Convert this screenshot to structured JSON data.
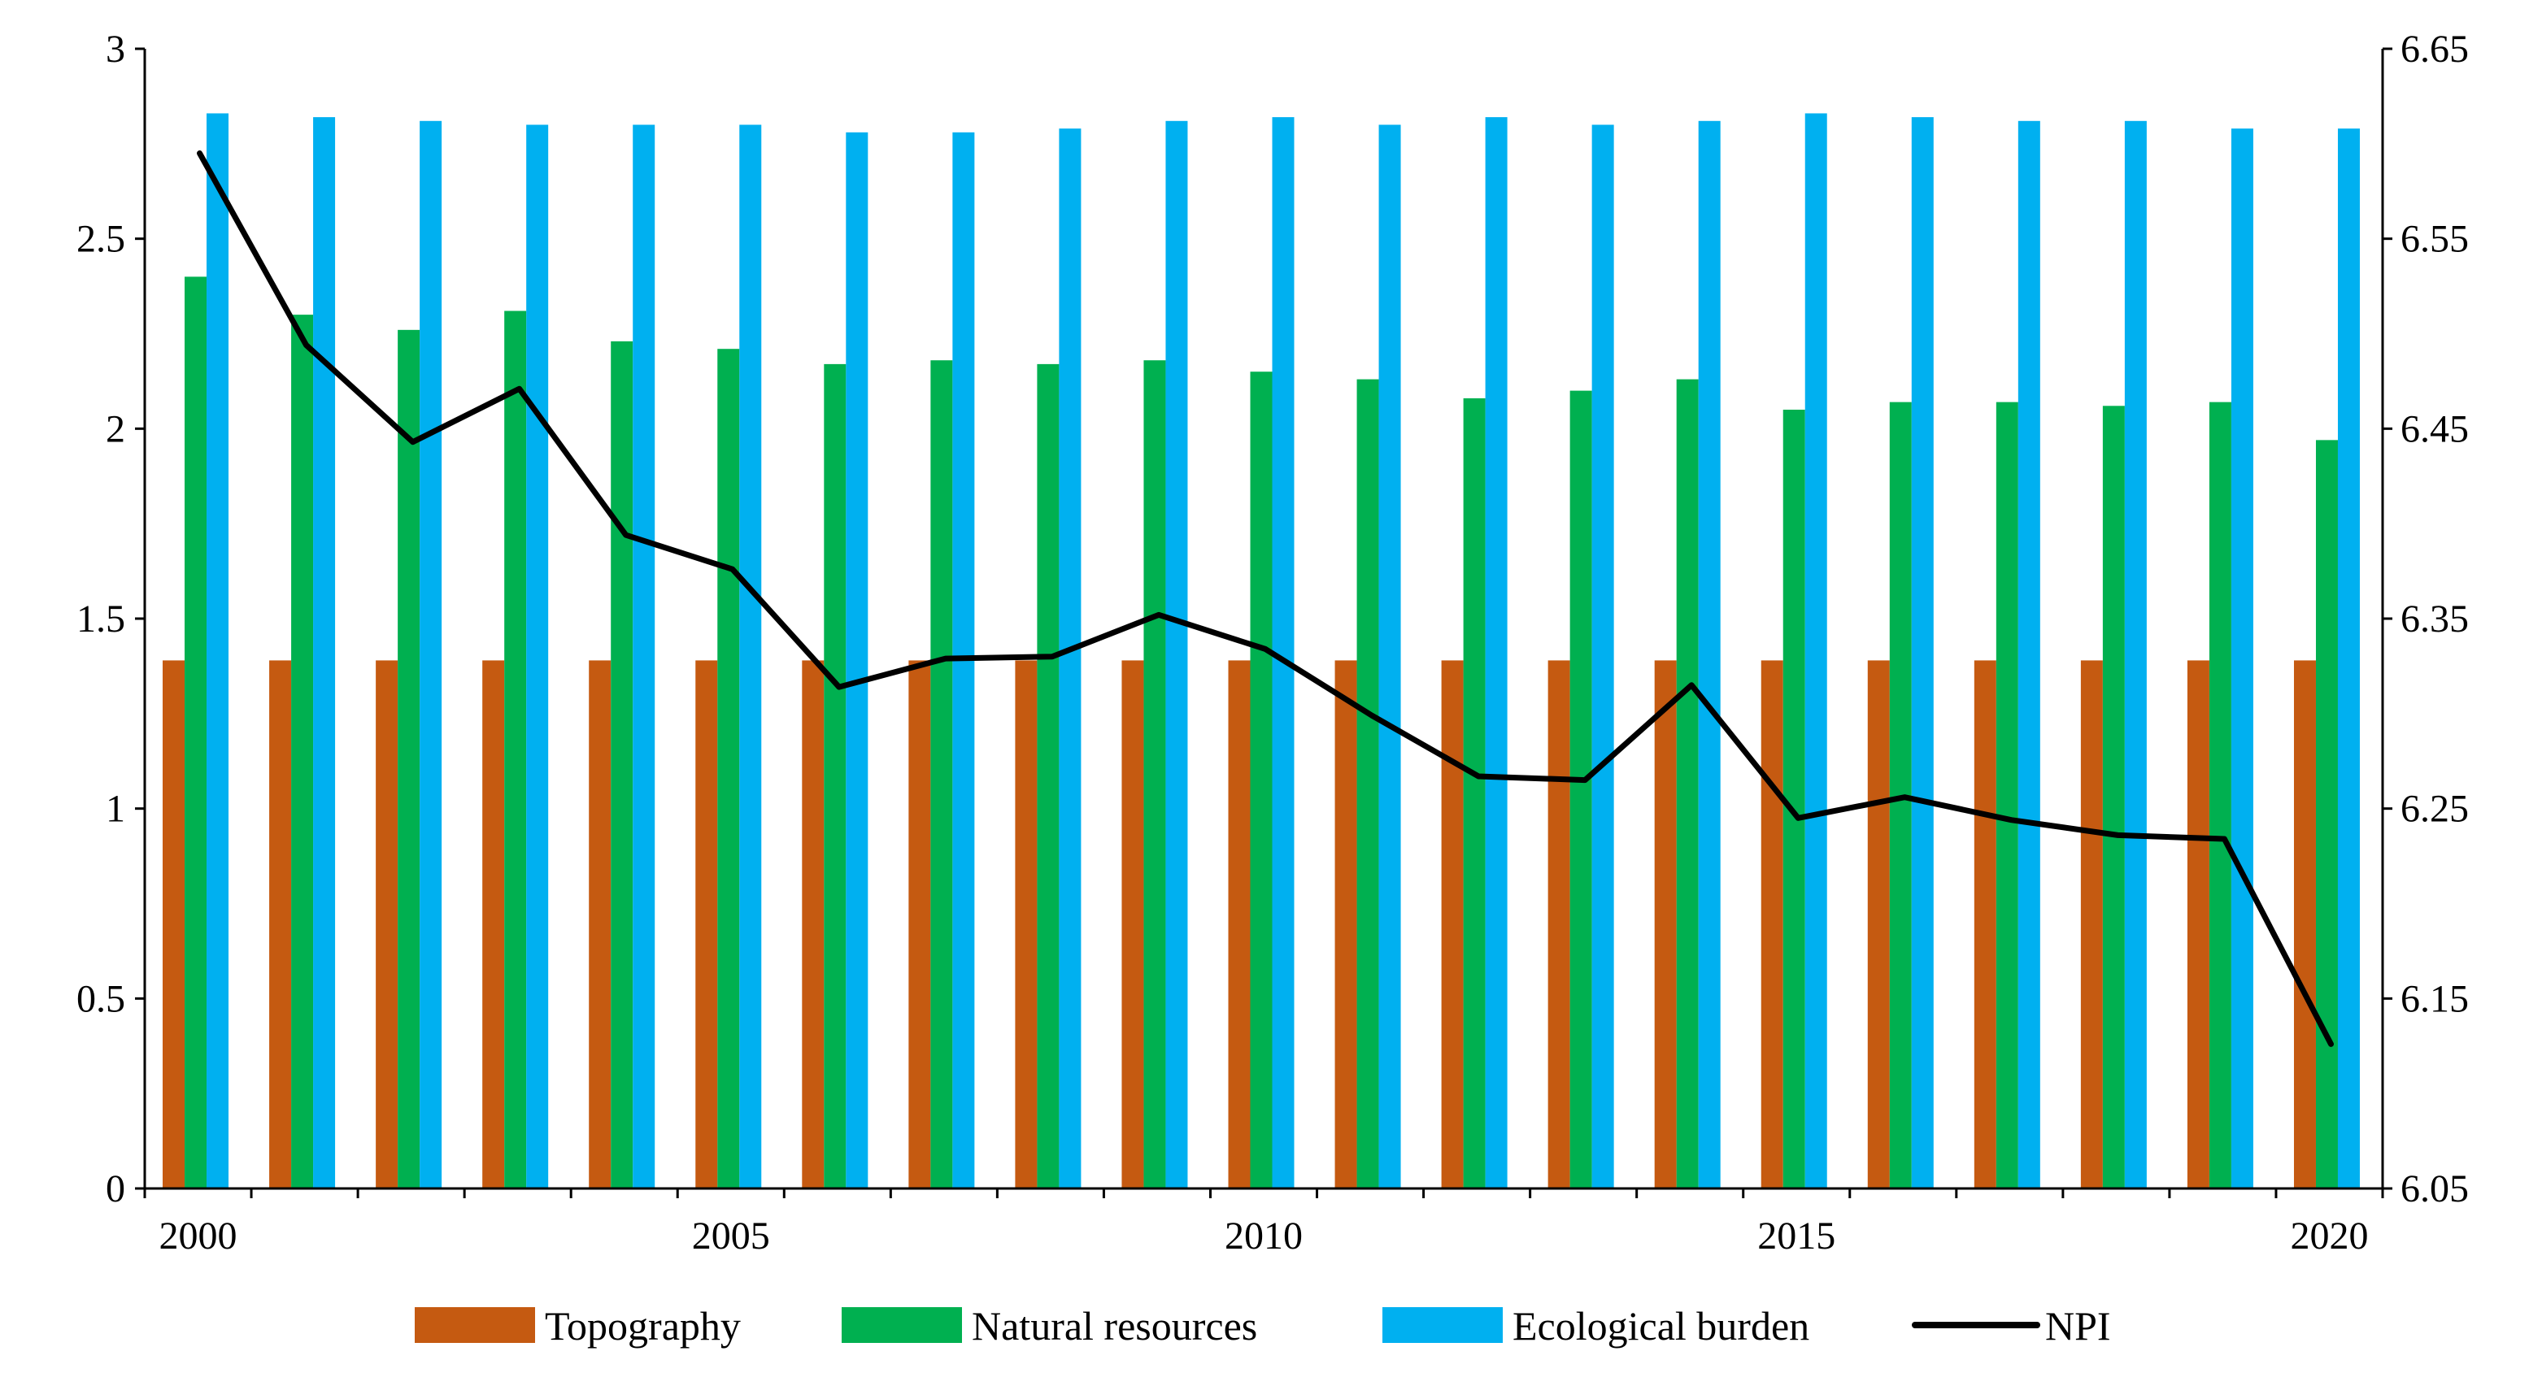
{
  "chart_data": {
    "type": "bar",
    "title": "",
    "xlabel": "",
    "ylabel": "",
    "x": [
      2000,
      2001,
      2002,
      2003,
      2004,
      2005,
      2006,
      2007,
      2008,
      2009,
      2010,
      2011,
      2012,
      2013,
      2014,
      2015,
      2016,
      2017,
      2018,
      2019,
      2020
    ],
    "x_tick_labels": [
      "2000",
      "2005",
      "2010",
      "2015",
      "2020"
    ],
    "x_tick_years": [
      2000,
      2005,
      2010,
      2015,
      2020
    ],
    "ylim_left": [
      0,
      3
    ],
    "y_left_ticks": [
      "0",
      "0.5",
      "1",
      "1.5",
      "2",
      "2.5",
      "3"
    ],
    "ylim_right": [
      6.05,
      6.65
    ],
    "y_right_ticks": [
      "6.05",
      "6.15",
      "6.25",
      "6.35",
      "6.45",
      "6.55",
      "6.65"
    ],
    "series": [
      {
        "name": "Topography",
        "axis": "left",
        "kind": "bar",
        "color": "#C55A11",
        "values": [
          1.39,
          1.39,
          1.39,
          1.39,
          1.39,
          1.39,
          1.39,
          1.39,
          1.39,
          1.39,
          1.39,
          1.39,
          1.39,
          1.39,
          1.39,
          1.39,
          1.39,
          1.39,
          1.39,
          1.39,
          1.39
        ]
      },
      {
        "name": "Natural resources",
        "axis": "left",
        "kind": "bar",
        "color": "#00B050",
        "values": [
          2.4,
          2.3,
          2.26,
          2.31,
          2.23,
          2.21,
          2.17,
          2.18,
          2.17,
          2.18,
          2.15,
          2.13,
          2.08,
          2.1,
          2.13,
          2.05,
          2.07,
          2.07,
          2.06,
          2.07,
          1.97
        ]
      },
      {
        "name": "Ecological burden",
        "axis": "left",
        "kind": "bar",
        "color": "#00B0F0",
        "values": [
          2.83,
          2.82,
          2.81,
          2.8,
          2.8,
          2.8,
          2.78,
          2.78,
          2.79,
          2.81,
          2.82,
          2.8,
          2.82,
          2.8,
          2.81,
          2.83,
          2.82,
          2.81,
          2.81,
          2.79,
          2.79
        ]
      },
      {
        "name": "NPI",
        "axis": "right",
        "kind": "line",
        "color": "#000000",
        "values": [
          6.595,
          6.494,
          6.443,
          6.471,
          6.394,
          6.376,
          6.314,
          6.329,
          6.33,
          6.352,
          6.334,
          6.299,
          6.267,
          6.265,
          6.315,
          6.245,
          6.256,
          6.244,
          6.236,
          6.234,
          6.126
        ]
      }
    ],
    "legend_position": "bottom"
  }
}
